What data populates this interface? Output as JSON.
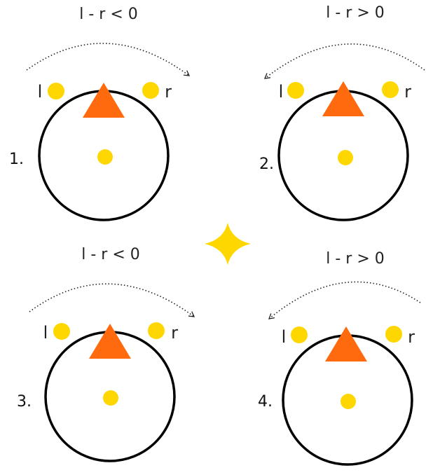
{
  "colors": {
    "dot": "#ffd700",
    "triangle": "#ff6a0e",
    "star": "#ffd700",
    "ring": "#000000"
  },
  "panels": [
    {
      "number": "1.",
      "condition": "l - r < 0",
      "left_label": "l",
      "right_label": "r",
      "arrow_direction": "clockwise"
    },
    {
      "number": "2.",
      "condition": "l - r > 0",
      "left_label": "l",
      "right_label": "r",
      "arrow_direction": "counterclockwise"
    },
    {
      "number": "3.",
      "condition": "l - r < 0",
      "left_label": "l",
      "right_label": "r",
      "arrow_direction": "clockwise"
    },
    {
      "number": "4.",
      "condition": "l - r > 0",
      "left_label": "l",
      "right_label": "r",
      "arrow_direction": "counterclockwise"
    }
  ],
  "center_icon": "four-point-star-icon"
}
